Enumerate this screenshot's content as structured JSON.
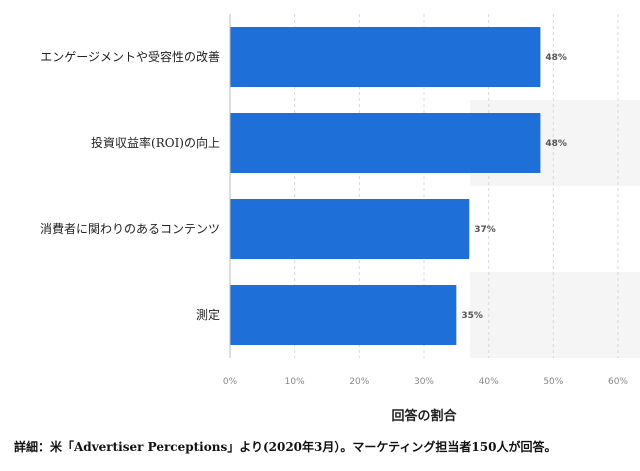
{
  "chart_data": {
    "type": "bar",
    "orientation": "horizontal",
    "categories": [
      "エンゲージメントや受容性の改善",
      "投資収益率(ROI)の向上",
      "消費者に関わりのあるコンテンツ",
      "測定"
    ],
    "values": [
      48,
      48,
      37,
      35
    ],
    "value_labels": [
      "48%",
      "48%",
      "37%",
      "35%"
    ],
    "xlabel": "回答の割合",
    "xlim": [
      0,
      60
    ],
    "xticks": [
      0,
      10,
      20,
      30,
      40,
      50,
      60
    ],
    "xtick_labels": [
      "0%",
      "10%",
      "20%",
      "30%",
      "40%",
      "50%",
      "60%"
    ],
    "grid": true,
    "bar_color": "#1f6fd8"
  },
  "footnote": "詳細：米「Advertiser Perceptions」より(2020年3月）。マーケティング担当者150人が回答。"
}
